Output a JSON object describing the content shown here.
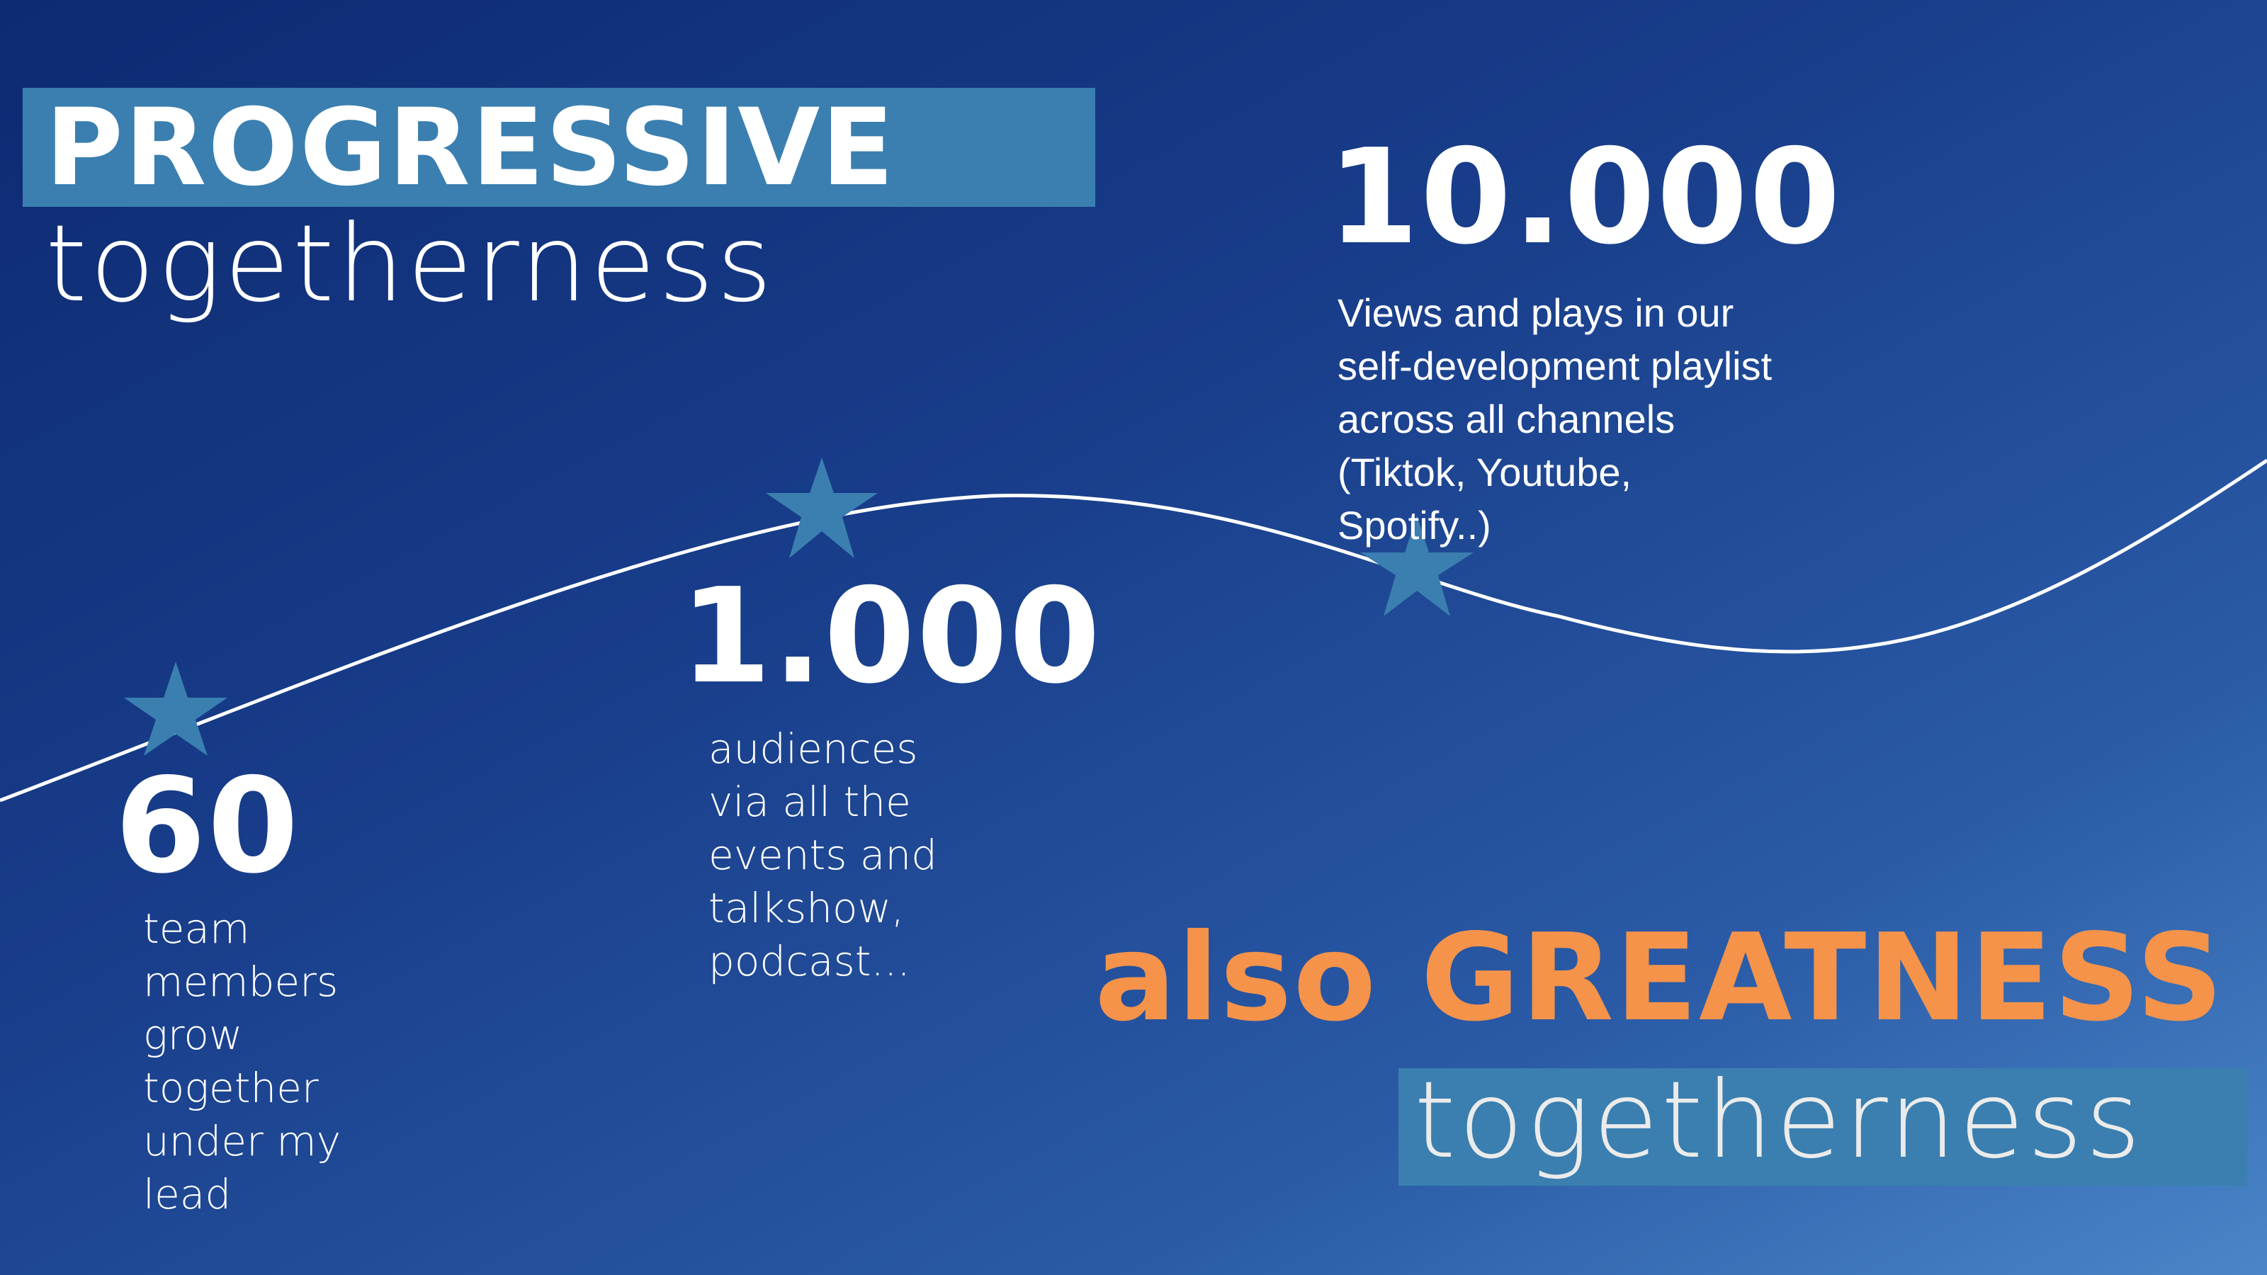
{
  "header": {
    "title": "PROGRESSIVE",
    "subtitle": "togetherness"
  },
  "stats": {
    "team": {
      "value": "60",
      "lines": [
        "team",
        "members",
        "grow",
        "together",
        "under my",
        "lead"
      ]
    },
    "audiences": {
      "value": "1.000",
      "lines": [
        "audiences",
        "via all the",
        "events and",
        "talkshow,",
        "podcast..."
      ]
    },
    "views": {
      "value": "10.000",
      "lines": [
        "Views and plays in our",
        "self-development playlist",
        "across all channels",
        "(Tiktok, Youtube,",
        "Spotify..)"
      ]
    }
  },
  "footer": {
    "prefix": "also",
    "highlight": "GREATNESS",
    "word": "togetherness"
  },
  "colors": {
    "accent_orange": "#f5934a",
    "highlight_blue": "#3a7fb0",
    "star_blue": "#3a7fb0",
    "text_white": "#ffffff"
  },
  "icons": [
    "star-icon",
    "star-icon",
    "star-icon"
  ]
}
